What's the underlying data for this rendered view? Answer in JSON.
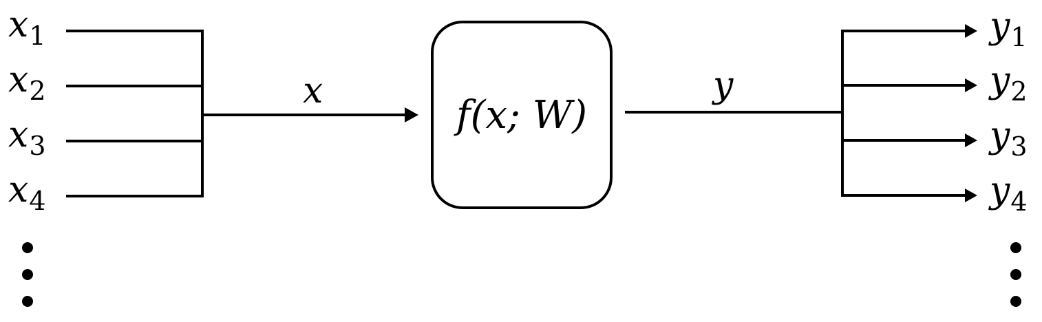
{
  "inputs": [
    {
      "base": "x",
      "sub": "1"
    },
    {
      "base": "x",
      "sub": "2"
    },
    {
      "base": "x",
      "sub": "3"
    },
    {
      "base": "x",
      "sub": "4"
    }
  ],
  "outputs": [
    {
      "base": "y",
      "sub": "1"
    },
    {
      "base": "y",
      "sub": "2"
    },
    {
      "base": "y",
      "sub": "3"
    },
    {
      "base": "y",
      "sub": "4"
    }
  ],
  "input_edge_label": "x",
  "output_edge_label": "y",
  "function_label": "f(x; W)",
  "colors": {
    "stroke": "#000000",
    "background": "#ffffff"
  }
}
